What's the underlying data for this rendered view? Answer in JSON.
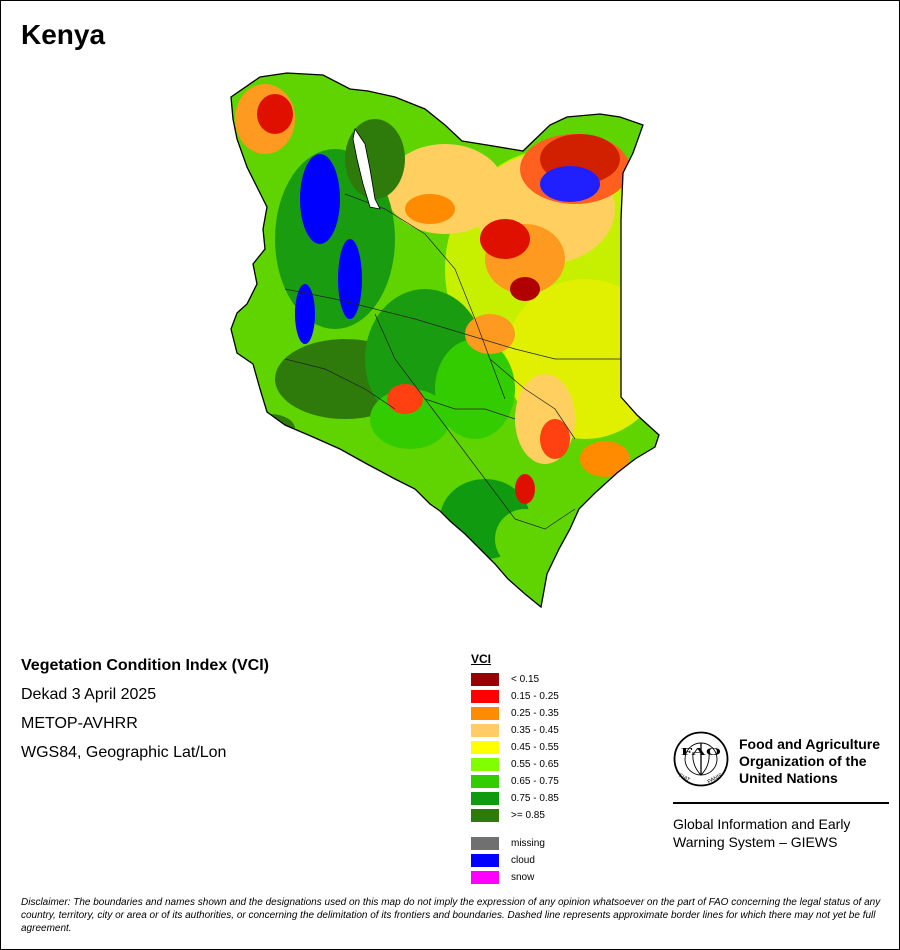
{
  "map": {
    "country": "Kenya",
    "index_title": "Vegetation Condition Index (VCI)",
    "period": "Dekad 3 April 2025",
    "sensor": "METOP-AVHRR",
    "projection": "WGS84, Geographic Lat/Lon"
  },
  "legend": {
    "title": "VCI",
    "classes": [
      {
        "label": "< 0.15",
        "color": "#990000"
      },
      {
        "label": "0.15 - 0.25",
        "color": "#ff0000"
      },
      {
        "label": "0.25 - 0.35",
        "color": "#ff8c00"
      },
      {
        "label": "0.35 - 0.45",
        "color": "#ffcc66"
      },
      {
        "label": "0.45 - 0.55",
        "color": "#ffff00"
      },
      {
        "label": "0.55 - 0.65",
        "color": "#7fff00"
      },
      {
        "label": "0.65 - 0.75",
        "color": "#33cc00"
      },
      {
        "label": "0.75 - 0.85",
        "color": "#109a10"
      },
      {
        "label": ">= 0.85",
        "color": "#2e7b0c"
      }
    ],
    "special": [
      {
        "label": "missing",
        "color": "#707070"
      },
      {
        "label": "cloud",
        "color": "#0000ff"
      },
      {
        "label": "snow",
        "color": "#ff00ff"
      }
    ]
  },
  "organization": {
    "name_line1": "Food and Agriculture",
    "name_line2": "Organization of the",
    "name_line3": "United Nations",
    "emblem_letters": "FAO",
    "motto_left": "FIAT",
    "motto_right": "PANIS",
    "system_line1": "Global Information and Early",
    "system_line2": "Warning System – GIEWS"
  },
  "disclaimer": "Disclaimer: The boundaries and names shown and the designations used on this map do not imply the expression of any opinion whatsoever on the part of FAO concerning the legal status of any country, territory, city or area or of its authorities, or concerning the delimitation of its frontiers and boundaries. Dashed line represents approximate border lines for which there may not yet be full agreement."
}
